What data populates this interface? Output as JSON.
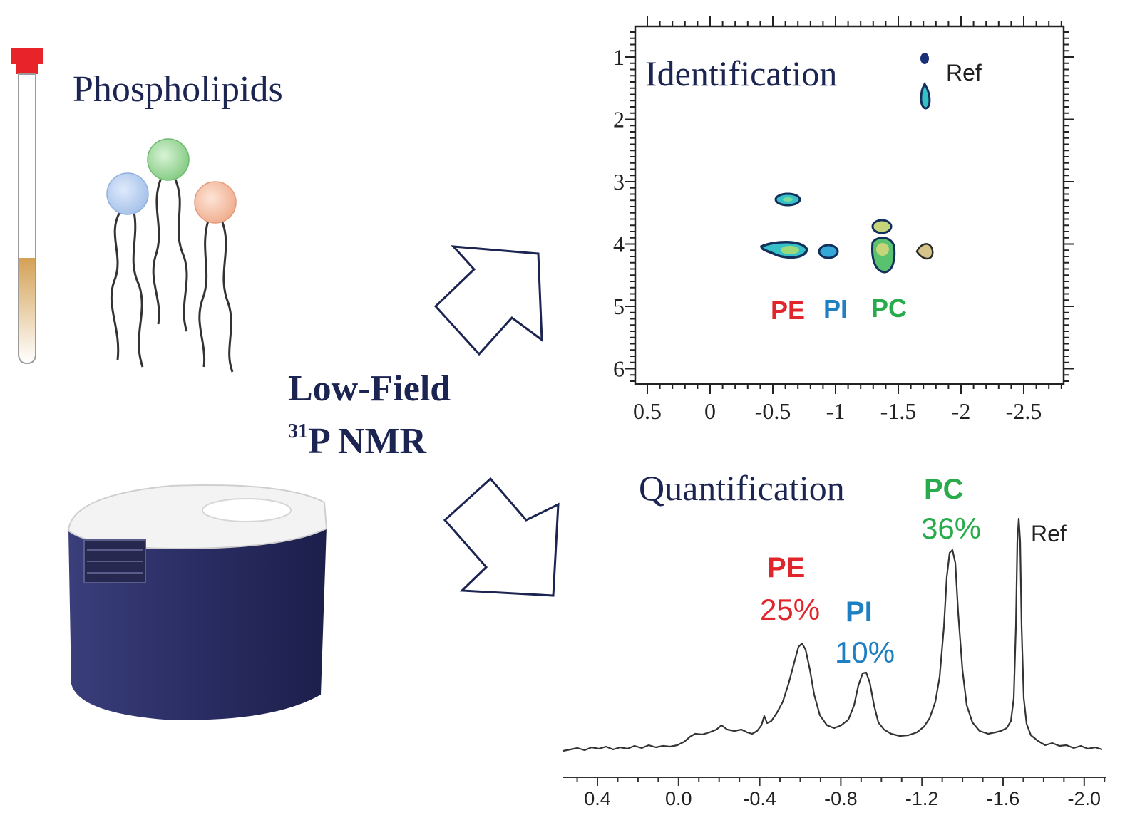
{
  "left": {
    "title": "Phospholipids",
    "method_line1": "Low-Field",
    "method_isotope": "31",
    "method_line2": "P NMR"
  },
  "identification": {
    "title": "Identification",
    "ref_label": "Ref",
    "labels": [
      {
        "text": "PE",
        "color": "#e0252b"
      },
      {
        "text": "PI",
        "color": "#1f7fc3"
      },
      {
        "text": "PC",
        "color": "#27ab4b"
      }
    ],
    "y_ticks": [
      "1",
      "2",
      "3",
      "4",
      "5",
      "6"
    ],
    "x_ticks": [
      "0.5",
      "0",
      "-0.5",
      "-1",
      "-1.5",
      "-2",
      "-2.5"
    ]
  },
  "quantification": {
    "title": "Quantification",
    "ref_label": "Ref",
    "peaks": [
      {
        "name": "PE",
        "percent": "25%",
        "color": "#e0252b"
      },
      {
        "name": "PI",
        "percent": "10%",
        "color": "#1f7fc3"
      },
      {
        "name": "PC",
        "percent": "36%",
        "color": "#27ab4b"
      }
    ],
    "x_ticks": [
      "0.4",
      "0.0",
      "-0.4",
      "-0.8",
      "-1.2",
      "-1.6",
      "-2.0"
    ]
  },
  "colors": {
    "navy": "#1c2452",
    "tube_cap": "#e8232a",
    "instrument_body": "#2c2f66",
    "head_blue": "#a9c4ea",
    "head_green": "#8fd38b",
    "head_orange": "#f2b79a"
  }
}
